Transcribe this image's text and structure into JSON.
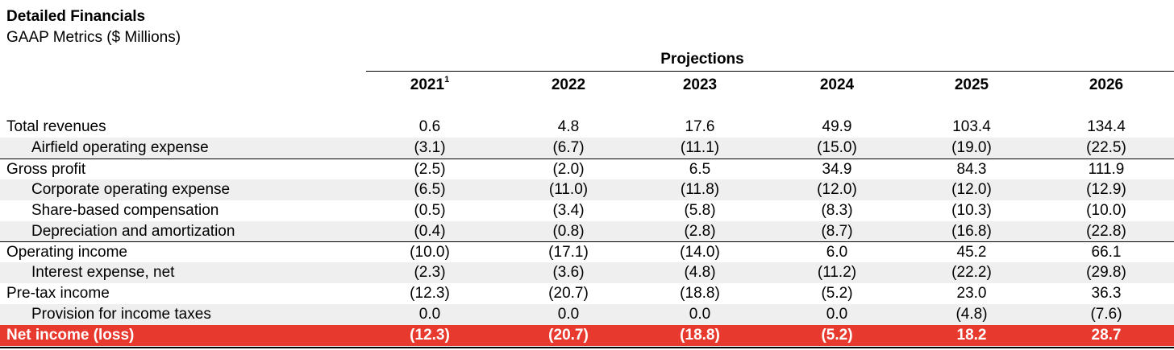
{
  "header": {
    "title": "Detailed Financials",
    "subtitle": "GAAP Metrics ($ Millions)",
    "projections_label": "Projections"
  },
  "years": [
    {
      "label": "2021",
      "footnote": "1"
    },
    {
      "label": "2022",
      "footnote": ""
    },
    {
      "label": "2023",
      "footnote": ""
    },
    {
      "label": "2024",
      "footnote": ""
    },
    {
      "label": "2025",
      "footnote": ""
    },
    {
      "label": "2026",
      "footnote": ""
    }
  ],
  "rows": [
    {
      "label": "Total revenues",
      "indent": false,
      "values": [
        "0.6",
        "4.8",
        "17.6",
        "49.9",
        "103.4",
        "134.4"
      ]
    },
    {
      "label": "Airfield operating expense",
      "indent": true,
      "values": [
        "(3.1)",
        "(6.7)",
        "(11.1)",
        "(15.0)",
        "(19.0)",
        "(22.5)"
      ]
    },
    {
      "label": "Gross profit",
      "indent": false,
      "values": [
        "(2.5)",
        "(2.0)",
        "6.5",
        "34.9",
        "84.3",
        "111.9"
      ]
    },
    {
      "label": "Corporate operating expense",
      "indent": true,
      "values": [
        "(6.5)",
        "(11.0)",
        "(11.8)",
        "(12.0)",
        "(12.0)",
        "(12.9)"
      ]
    },
    {
      "label": "Share-based compensation",
      "indent": true,
      "values": [
        "(0.5)",
        "(3.4)",
        "(5.8)",
        "(8.3)",
        "(10.3)",
        "(10.0)"
      ]
    },
    {
      "label": "Depreciation and amortization",
      "indent": true,
      "values": [
        "(0.4)",
        "(0.8)",
        "(2.8)",
        "(8.7)",
        "(16.8)",
        "(22.8)"
      ]
    },
    {
      "label": "Operating income",
      "indent": false,
      "values": [
        "(10.0)",
        "(17.1)",
        "(14.0)",
        "6.0",
        "45.2",
        "66.1"
      ]
    },
    {
      "label": "Interest expense, net",
      "indent": true,
      "values": [
        "(2.3)",
        "(3.6)",
        "(4.8)",
        "(11.2)",
        "(22.2)",
        "(29.8)"
      ]
    },
    {
      "label": "Pre-tax income",
      "indent": false,
      "values": [
        "(12.3)",
        "(20.7)",
        "(18.8)",
        "(5.2)",
        "23.0",
        "36.3"
      ]
    },
    {
      "label": "Provision for income taxes",
      "indent": true,
      "values": [
        "0.0",
        "0.0",
        "0.0",
        "0.0",
        "(4.8)",
        "(7.6)"
      ]
    },
    {
      "label": "Net income (loss)",
      "indent": false,
      "values": [
        "(12.3)",
        "(20.7)",
        "(18.8)",
        "(5.2)",
        "18.2",
        "28.7"
      ]
    }
  ],
  "colors": {
    "total_row": "#e8392e",
    "shaded_row": "#efefef"
  }
}
